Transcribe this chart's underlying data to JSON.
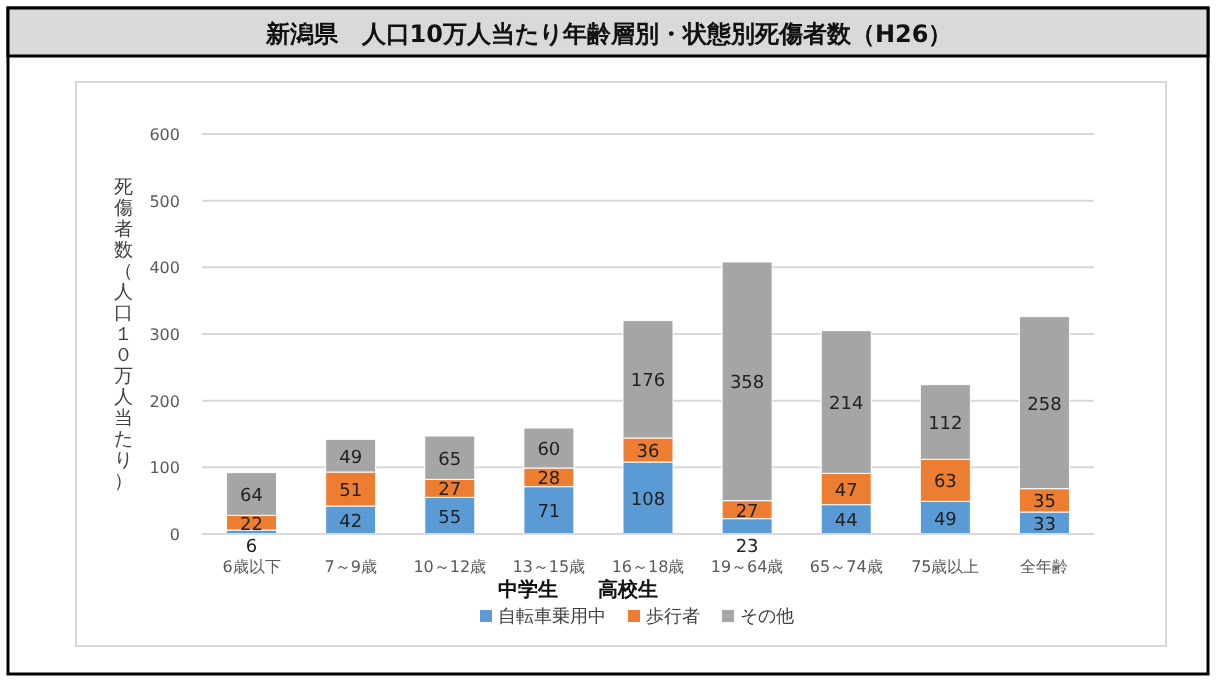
{
  "chart_data": {
    "type": "bar",
    "title": "新潟県　人口10万人当たり年齢層別・状態別死傷者数（H26）",
    "ylabel": "死傷者数（人口１０万人当たり）",
    "categories": [
      "6歳以下",
      "7～9歳",
      "10～12歳",
      "13～15歳",
      "16～18歳",
      "19～64歳",
      "65～74歳",
      "75歳以上",
      "全年齢"
    ],
    "series": [
      {
        "name": "自転車乗用中",
        "color": "#5b9bd5",
        "values": [
          6,
          42,
          55,
          71,
          108,
          23,
          44,
          49,
          33
        ]
      },
      {
        "name": "歩行者",
        "color": "#ed7d31",
        "values": [
          22,
          51,
          27,
          28,
          36,
          27,
          47,
          63,
          35
        ]
      },
      {
        "name": "その他",
        "color": "#a5a5a5",
        "values": [
          64,
          49,
          65,
          60,
          176,
          358,
          214,
          112,
          258
        ]
      }
    ],
    "stacked": true,
    "ylim": [
      0,
      600
    ],
    "yticks": [
      0,
      100,
      200,
      300,
      400,
      500,
      600
    ],
    "grid": "y",
    "legend": "bottom",
    "data_labels": true,
    "annotations": [
      "中学生",
      "高校生"
    ]
  }
}
